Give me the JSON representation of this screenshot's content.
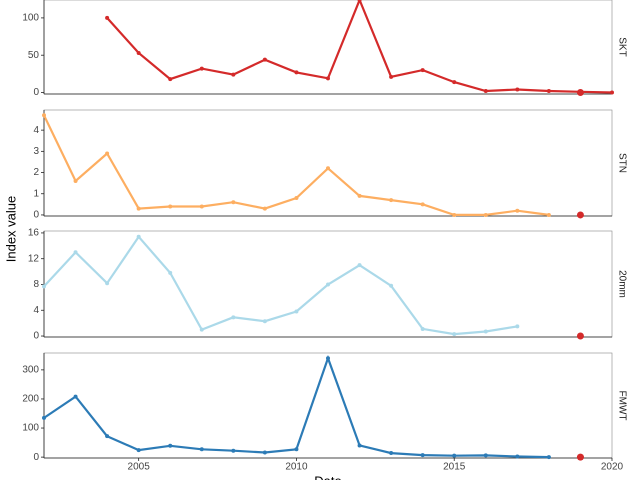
{
  "chart_data": [
    {
      "type": "line",
      "x": [
        2002,
        2003,
        2004,
        2005,
        2006,
        2007,
        2008,
        2009,
        2010,
        2011,
        2012,
        2013,
        2014,
        2015,
        2016,
        2017,
        2018,
        2019,
        2020
      ],
      "series": [
        {
          "name": "SKT",
          "color": "#d42a2a",
          "values": [
            null,
            null,
            100,
            53,
            18,
            32,
            24,
            44,
            27,
            19,
            124,
            21,
            30,
            14,
            2,
            4,
            2,
            1,
            0
          ]
        }
      ],
      "highlight": {
        "x": 2019,
        "value": 0,
        "color": "#d42a2a"
      },
      "xlim": [
        2002,
        2020
      ],
      "ylim": [
        -2,
        124
      ],
      "yticks": [
        0,
        50,
        100
      ]
    },
    {
      "type": "line",
      "x": [
        2002,
        2003,
        2004,
        2005,
        2006,
        2007,
        2008,
        2009,
        2010,
        2011,
        2012,
        2013,
        2014,
        2015,
        2016,
        2017,
        2018,
        2019,
        2020
      ],
      "series": [
        {
          "name": "STN",
          "color": "#fdae61",
          "values": [
            4.7,
            1.6,
            2.9,
            0.3,
            0.4,
            0.4,
            0.6,
            0.3,
            0.8,
            2.2,
            0.9,
            0.7,
            0.5,
            0,
            0,
            0.2,
            0,
            null,
            null
          ]
        }
      ],
      "highlight": {
        "x": 2019,
        "value": 0,
        "color": "#d42a2a"
      },
      "xlim": [
        2002,
        2020
      ],
      "ylim": [
        -0.05,
        4.95
      ],
      "yticks": [
        0,
        1,
        2,
        3,
        4
      ]
    },
    {
      "type": "line",
      "x": [
        2002,
        2003,
        2004,
        2005,
        2006,
        2007,
        2008,
        2009,
        2010,
        2011,
        2012,
        2013,
        2014,
        2015,
        2016,
        2017,
        2018,
        2019,
        2020
      ],
      "series": [
        {
          "name": "20mm",
          "color": "#abd9e9",
          "values": [
            7.7,
            13,
            8.2,
            15.4,
            9.8,
            1,
            2.9,
            2.3,
            3.8,
            8,
            11,
            7.8,
            1.1,
            0.3,
            0.7,
            1.5,
            null,
            null,
            null
          ]
        }
      ],
      "highlight": {
        "x": 2019,
        "value": 0,
        "color": "#d42a2a"
      },
      "xlim": [
        2002,
        2020
      ],
      "ylim": [
        -0.15,
        16.3
      ],
      "yticks": [
        0,
        4,
        8,
        12,
        16
      ]
    },
    {
      "type": "line",
      "x": [
        2002,
        2003,
        2004,
        2005,
        2006,
        2007,
        2008,
        2009,
        2010,
        2011,
        2012,
        2013,
        2014,
        2015,
        2016,
        2017,
        2018,
        2019,
        2020
      ],
      "series": [
        {
          "name": "FMWT",
          "color": "#2c7bb6",
          "values": [
            135,
            208,
            72,
            24,
            39,
            27,
            22,
            16,
            27,
            340,
            40,
            14,
            7,
            5,
            6,
            2,
            0,
            null,
            null
          ]
        }
      ],
      "highlight": {
        "x": 2019,
        "value": 0,
        "color": "#d42a2a"
      },
      "xlim": [
        2002,
        2020
      ],
      "ylim": [
        -3,
        358
      ],
      "yticks": [
        0,
        100,
        200,
        300
      ],
      "xticks": [
        2005,
        2010,
        2015,
        2020
      ],
      "xlabel": "Date",
      "ylabel": "Index value"
    }
  ]
}
